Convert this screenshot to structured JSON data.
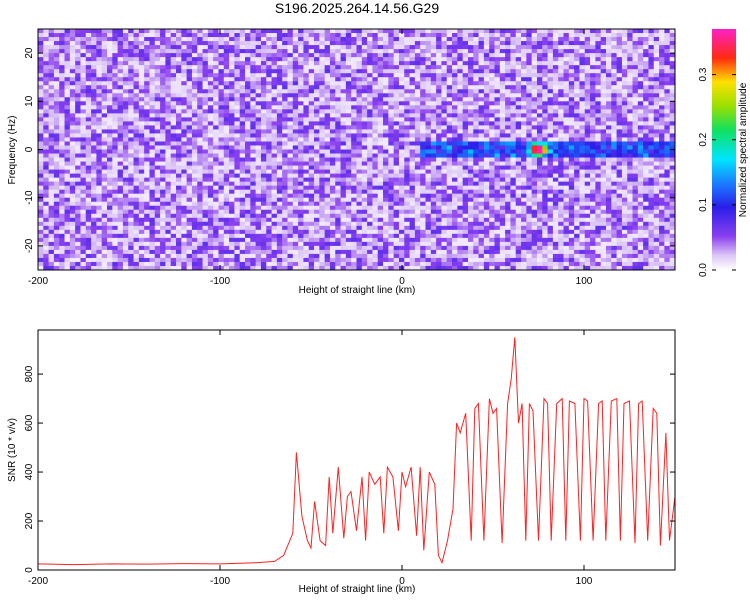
{
  "figure": {
    "title": "S196.2025.264.14.56.G29"
  },
  "chart_data": [
    {
      "type": "heatmap",
      "title": "S196.2025.264.14.56.G29",
      "xlabel": "Height of straight line (km)",
      "ylabel": "Frequency (Hz)",
      "xlim": [
        -200,
        150
      ],
      "ylim": [
        -25,
        25
      ],
      "x_ticks": [
        -200,
        -100,
        0,
        100
      ],
      "x_tick_labels": [
        "-200",
        "-100",
        "0",
        "100"
      ],
      "y_ticks": [
        -20,
        -10,
        0,
        10,
        20
      ],
      "y_tick_labels": [
        "-20",
        "-10",
        "0",
        "10",
        "20"
      ],
      "colorbar": {
        "label": "Normalized spectral amplitude",
        "range": [
          0.0,
          0.37
        ],
        "ticks": [
          0.0,
          0.1,
          0.2,
          0.3
        ],
        "tick_labels": [
          "0.0",
          "0.1",
          "0.2",
          "0.3"
        ],
        "colormap": "white-violet-blue-cyan-green-yellow-red-magenta"
      },
      "grid": false,
      "features": {
        "background_level": 0.04,
        "peak_value": 0.34,
        "peak_location": {
          "x": 75,
          "y": 0
        },
        "signal_band_y": 0,
        "signal_band_start_x": 10
      }
    },
    {
      "type": "line",
      "xlabel": "Height of straight line (km)",
      "ylabel": "SNR (10 * v/v)",
      "xlim": [
        -200,
        150
      ],
      "ylim": [
        0,
        980
      ],
      "x_ticks": [
        -200,
        -100,
        0,
        100
      ],
      "x_tick_labels": [
        "-200",
        "-100",
        "0",
        "100"
      ],
      "y_ticks": [
        0,
        200,
        400,
        600,
        800
      ],
      "y_tick_labels": [
        "0",
        "200",
        "400",
        "600",
        "800"
      ],
      "grid": false,
      "series_color": "#ff2020",
      "series": [
        {
          "x": [
            -200,
            -180,
            -160,
            -140,
            -120,
            -100,
            -80,
            -70,
            -65,
            -60,
            -58,
            -55,
            -52,
            -50,
            -48,
            -45,
            -42,
            -40,
            -38,
            -35,
            -32,
            -30,
            -28,
            -25,
            -22,
            -20,
            -18,
            -15,
            -12,
            -10,
            -8,
            -5,
            -2,
            0,
            2,
            5,
            8,
            10,
            12,
            15,
            18,
            20,
            22,
            25,
            28,
            30,
            32,
            35,
            38,
            40,
            42,
            45,
            48,
            50,
            52,
            55,
            58,
            60,
            62,
            64,
            66,
            68,
            70,
            72,
            75,
            78,
            80,
            82,
            85,
            88,
            90,
            92,
            95,
            98,
            100,
            102,
            105,
            108,
            110,
            112,
            115,
            118,
            120,
            122,
            125,
            128,
            130,
            132,
            135,
            138,
            140,
            142,
            145,
            147,
            150
          ],
          "y": [
            25,
            22,
            25,
            24,
            26,
            25,
            30,
            35,
            60,
            150,
            480,
            220,
            120,
            90,
            280,
            120,
            100,
            380,
            150,
            420,
            130,
            300,
            320,
            160,
            380,
            120,
            400,
            350,
            380,
            150,
            420,
            380,
            160,
            400,
            340,
            420,
            140,
            420,
            80,
            400,
            350,
            60,
            30,
            120,
            250,
            600,
            560,
            640,
            120,
            660,
            680,
            120,
            700,
            640,
            660,
            110,
            680,
            780,
            950,
            600,
            680,
            120,
            680,
            650,
            120,
            700,
            680,
            120,
            680,
            700,
            120,
            690,
            680,
            120,
            700,
            690,
            120,
            680,
            690,
            120,
            690,
            700,
            120,
            680,
            690,
            110,
            680,
            690,
            120,
            660,
            640,
            100,
            560,
            120,
            300
          ]
        }
      ]
    }
  ]
}
